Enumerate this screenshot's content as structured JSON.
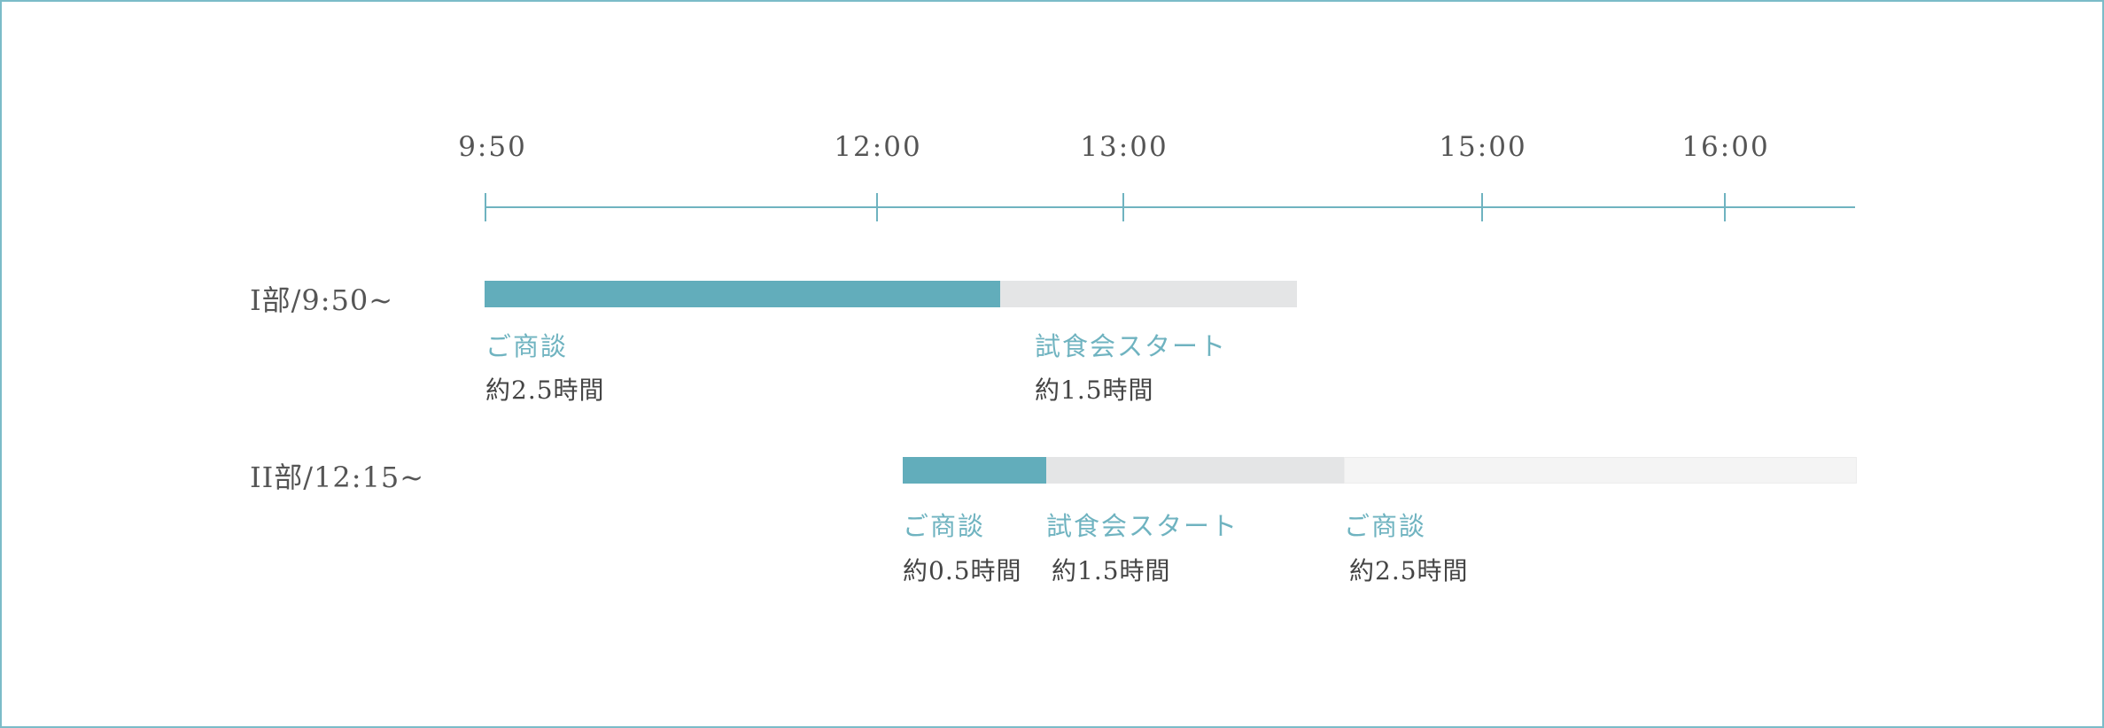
{
  "colors": {
    "accent": "#62adbb",
    "bar_gray": "#e4e5e6",
    "bar_light": "#f4f4f4",
    "frame": "#7bbcc8"
  },
  "axis": {
    "ticks": [
      "9:50",
      "12:00",
      "13:00",
      "15:00",
      "16:00"
    ]
  },
  "part1": {
    "label": "I部/9:50~",
    "segments": [
      {
        "name": "ご商談",
        "duration": "約2.5時間"
      },
      {
        "name": "試食会スタート",
        "duration": "約1.5時間"
      }
    ]
  },
  "part2": {
    "label": "II部/12:15~",
    "segments": [
      {
        "name": "ご商談",
        "duration": "約0.5時間"
      },
      {
        "name": "試食会スタート",
        "duration": "約1.5時間"
      },
      {
        "name": "ご商談",
        "duration": "約2.5時間"
      }
    ]
  }
}
